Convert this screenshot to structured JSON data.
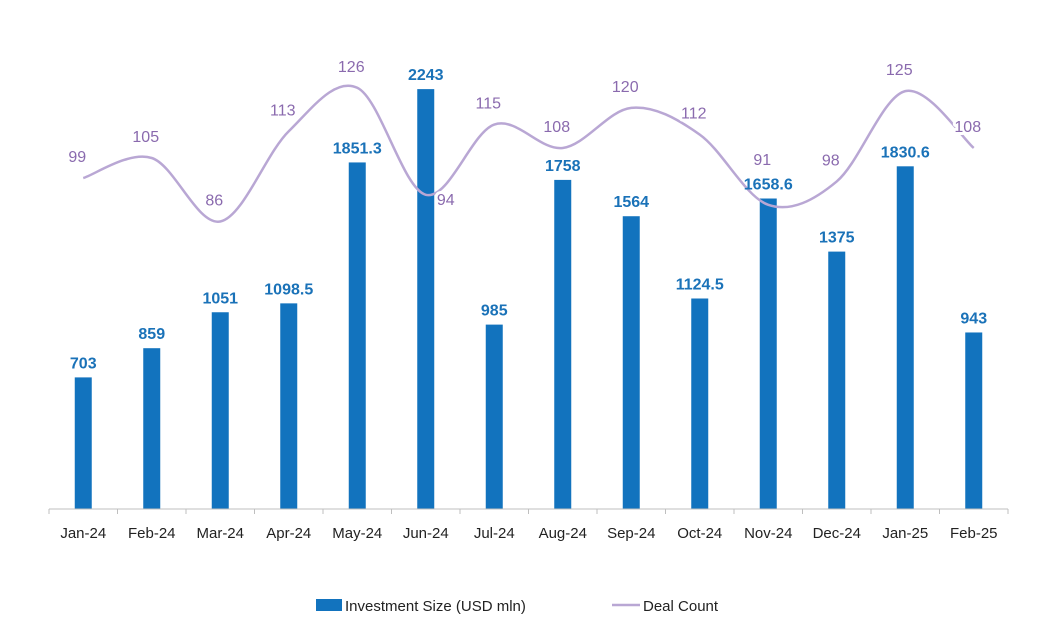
{
  "chart_data": {
    "type": "bar",
    "title": "",
    "xlabel": "",
    "ylabel": "",
    "categories": [
      "Jan-24",
      "Feb-24",
      "Mar-24",
      "Apr-24",
      "May-24",
      "Jun-24",
      "Jul-24",
      "Aug-24",
      "Sep-24",
      "Oct-24",
      "Nov-24",
      "Dec-24",
      "Jan-25",
      "Feb-25"
    ],
    "series": [
      {
        "name": "Investment Size (USD mln)",
        "type": "bar",
        "axis": "primary",
        "color": "#1273be",
        "values": [
          703,
          859,
          1051,
          1098.5,
          1851.3,
          2243,
          985,
          1758,
          1564,
          1124.5,
          1658.6,
          1375,
          1830.6,
          943
        ]
      },
      {
        "name": "Deal Count",
        "type": "line",
        "smooth": true,
        "axis": "secondary",
        "color": "#b9a7d4",
        "values": [
          99,
          105,
          86,
          113,
          126,
          94,
          115,
          108,
          120,
          112,
          91,
          98,
          125,
          108
        ]
      }
    ],
    "ylim": [
      0,
      2500
    ],
    "y2lim": [
      0,
      140
    ],
    "y_axis_visible": false,
    "grid": false,
    "data_labels": true,
    "legend": "bottom"
  }
}
